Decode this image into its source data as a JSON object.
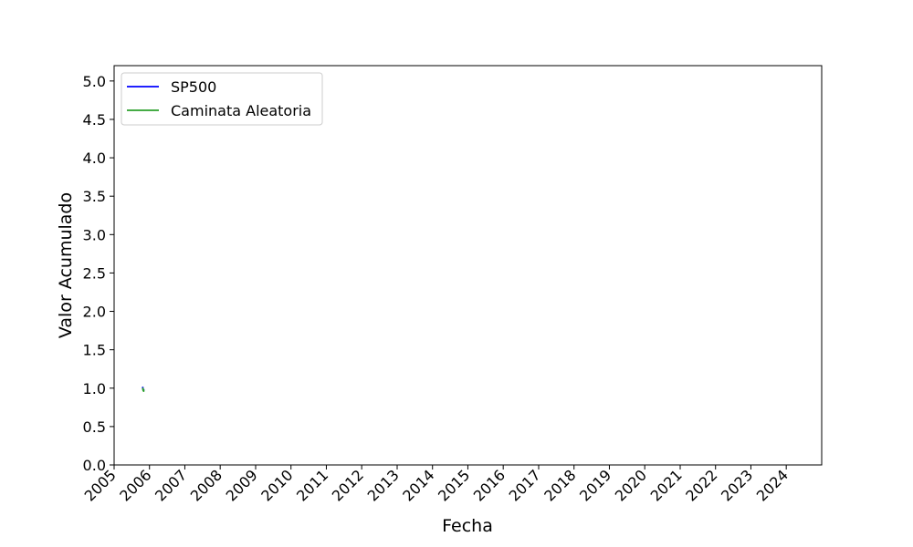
{
  "chart_data": {
    "type": "line",
    "title": "",
    "xlabel": "Fecha",
    "ylabel": "Valor Acumulado",
    "xlim": [
      "2005",
      "2025"
    ],
    "ylim": [
      0,
      5.2
    ],
    "x_ticks": [
      "2005",
      "2006",
      "2007",
      "2008",
      "2009",
      "2010",
      "2011",
      "2012",
      "2013",
      "2014",
      "2015",
      "2016",
      "2017",
      "2018",
      "2019",
      "2020",
      "2021",
      "2022",
      "2023",
      "2024"
    ],
    "y_ticks": [
      "0.0",
      "0.5",
      "1.0",
      "1.5",
      "2.0",
      "2.5",
      "3.0",
      "3.5",
      "4.0",
      "4.5",
      "5.0"
    ],
    "grid": false,
    "legend_position": "top-left",
    "series": [
      {
        "name": "SP500",
        "color": "#0000ff",
        "x": [
          "2005-10-21",
          "2005-10-24",
          "2005-10-26",
          "2005-10-28",
          "2005-10-31",
          "2005-11-02",
          "2005-11-04"
        ],
        "y": [
          1.0,
          1.01,
          0.99,
          0.98,
          0.97,
          0.98,
          0.97
        ]
      },
      {
        "name": "Caminata Aleatoria",
        "color": "#2ca02c",
        "x": [
          "2005-10-21",
          "2005-10-24",
          "2005-10-26",
          "2005-10-28",
          "2005-10-31",
          "2005-11-02",
          "2005-11-04"
        ],
        "y": [
          1.0,
          1.0,
          0.98,
          0.97,
          0.98,
          0.96,
          0.97
        ]
      }
    ]
  }
}
